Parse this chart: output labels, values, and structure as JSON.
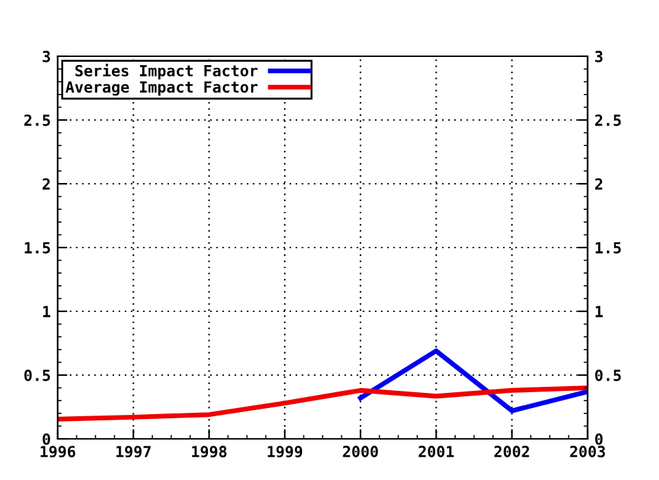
{
  "chart_data": {
    "type": "line",
    "x": [
      1996,
      1997,
      1998,
      1999,
      2000,
      2001,
      2002,
      2003
    ],
    "series": [
      {
        "name": "Series Impact Factor",
        "color": "#0000ee",
        "values": [
          null,
          null,
          null,
          null,
          0.32,
          0.69,
          0.22,
          0.37
        ]
      },
      {
        "name": "Average Impact Factor",
        "color": "#ee0000",
        "values": [
          0.155,
          0.17,
          0.19,
          0.28,
          0.38,
          0.335,
          0.38,
          0.4
        ]
      }
    ],
    "xlim": [
      1996,
      2003
    ],
    "xticks": [
      1996,
      1997,
      1998,
      1999,
      2000,
      2001,
      2002,
      2003
    ],
    "ylim": [
      0,
      3
    ],
    "yticks": [
      0,
      0.5,
      1,
      1.5,
      2,
      2.5,
      3
    ],
    "y2lim": [
      0,
      3
    ],
    "y2ticks": [
      0,
      0.5,
      1,
      1.5,
      2,
      2.5,
      3
    ],
    "grid": true,
    "legend": "top left",
    "line_style": "solid",
    "marker": "none"
  }
}
